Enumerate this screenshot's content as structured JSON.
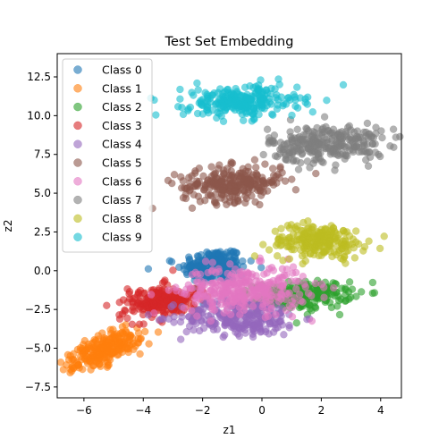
{
  "chart_data": {
    "type": "scatter",
    "title": "Test Set Embedding",
    "xlabel": "z1",
    "ylabel": "z2",
    "xlim": [
      -6.9,
      4.7
    ],
    "ylim": [
      -8.2,
      14.0
    ],
    "xticks": [
      -6,
      -4,
      -2,
      0,
      2,
      4
    ],
    "yticks": [
      -7.5,
      -5.0,
      -2.5,
      0.0,
      2.5,
      5.0,
      7.5,
      10.0,
      12.5
    ],
    "xtick_labels": [
      "−6",
      "−4",
      "−2",
      "0",
      "2",
      "4"
    ],
    "ytick_labels": [
      "−7.5",
      "−5.0",
      "−2.5",
      "0.0",
      "2.5",
      "5.0",
      "7.5",
      "10.0",
      "12.5"
    ],
    "grid": false,
    "legend_position": "upper-left",
    "marker_alpha": 0.6,
    "series": [
      {
        "name": "Class 0",
        "color": "#1f77b4",
        "clusters": [
          {
            "center": [
              -1.6,
              0.3
            ],
            "spread": [
              0.55,
              0.55
            ],
            "angle": 0.2,
            "count": 220
          }
        ]
      },
      {
        "name": "Class 1",
        "color": "#ff7f0e",
        "clusters": [
          {
            "center": [
              -5.3,
              -5.1
            ],
            "spread": [
              0.75,
              0.35
            ],
            "angle": 0.75,
            "count": 260
          }
        ]
      },
      {
        "name": "Class 2",
        "color": "#2ca02c",
        "clusters": [
          {
            "center": [
              1.4,
              -1.6
            ],
            "spread": [
              0.8,
              0.45
            ],
            "angle": 0.1,
            "count": 220
          }
        ]
      },
      {
        "name": "Class 3",
        "color": "#d62728",
        "clusters": [
          {
            "center": [
              -3.4,
              -2.0
            ],
            "spread": [
              0.7,
              0.5
            ],
            "angle": 0.4,
            "count": 220
          }
        ]
      },
      {
        "name": "Class 4",
        "color": "#9467bd",
        "clusters": [
          {
            "center": [
              -0.7,
              -3.0
            ],
            "spread": [
              1.0,
              0.6
            ],
            "angle": 0.0,
            "count": 260
          }
        ]
      },
      {
        "name": "Class 5",
        "color": "#8c564b",
        "clusters": [
          {
            "center": [
              -1.0,
              5.6
            ],
            "spread": [
              0.9,
              0.55
            ],
            "angle": 0.15,
            "count": 260
          }
        ]
      },
      {
        "name": "Class 6",
        "color": "#e377c2",
        "clusters": [
          {
            "center": [
              -0.6,
              -1.2
            ],
            "spread": [
              1.05,
              0.75
            ],
            "angle": 0.05,
            "count": 320
          }
        ]
      },
      {
        "name": "Class 7",
        "color": "#7f7f7f",
        "clusters": [
          {
            "center": [
              2.2,
              8.2
            ],
            "spread": [
              0.95,
              0.6
            ],
            "angle": 0.1,
            "count": 280
          }
        ]
      },
      {
        "name": "Class 8",
        "color": "#bcbd22",
        "clusters": [
          {
            "center": [
              1.9,
              1.9
            ],
            "spread": [
              0.8,
              0.55
            ],
            "angle": 0.0,
            "count": 230
          }
        ]
      },
      {
        "name": "Class 9",
        "color": "#17becf",
        "clusters": [
          {
            "center": [
              -0.7,
              10.9
            ],
            "spread": [
              0.95,
              0.5
            ],
            "angle": 0.0,
            "count": 260
          }
        ]
      }
    ]
  }
}
